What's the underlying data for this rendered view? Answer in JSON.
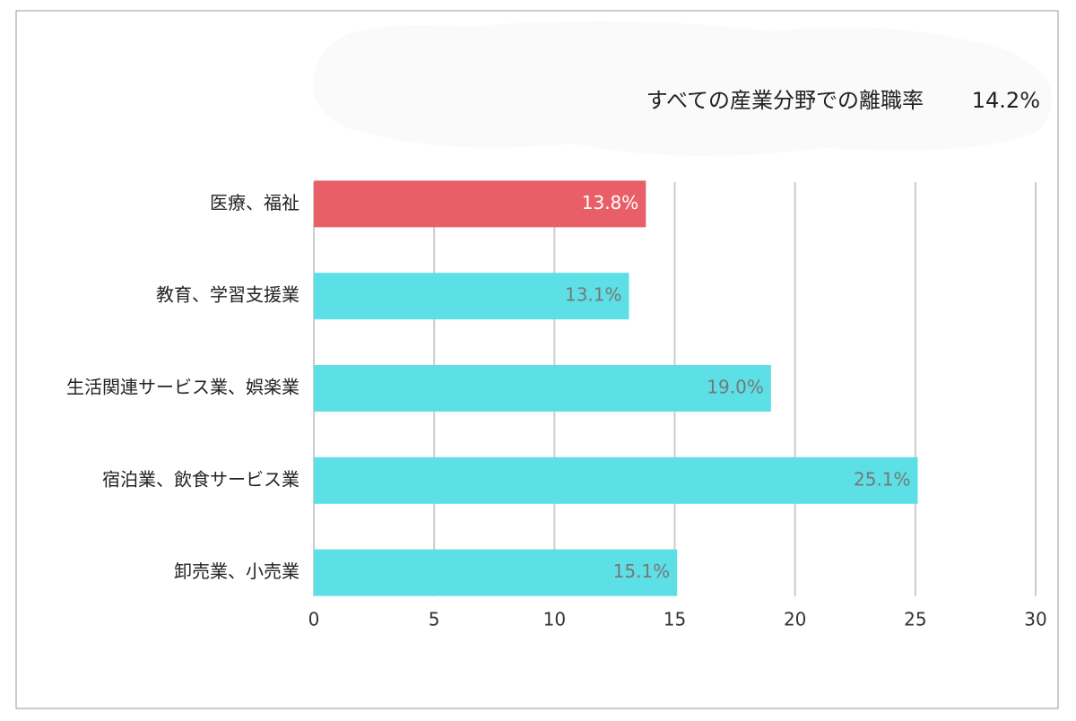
{
  "chart_data": {
    "type": "bar",
    "orientation": "horizontal",
    "annotation": {
      "label": "すべての産業分野での離職率",
      "value": "14.2%"
    },
    "categories": [
      "医療、福祉",
      "教育、学習支援業",
      "生活関連サービス業、娯楽業",
      "宿泊業、飲食サービス業",
      "卸売業、小売業"
    ],
    "values": [
      13.8,
      13.1,
      19.0,
      25.1,
      15.1
    ],
    "value_labels": [
      "13.8%",
      "13.1%",
      "19.0%",
      "25.1%",
      "15.1%"
    ],
    "colors": [
      "#e95f67",
      "#5ce0e6",
      "#5ce0e6",
      "#5ce0e6",
      "#5ce0e6"
    ],
    "label_colors": [
      "#ffffff",
      "#777777",
      "#777777",
      "#777777",
      "#777777"
    ],
    "xlim": [
      0,
      30
    ],
    "xticks": [
      0,
      5,
      10,
      15,
      20,
      25,
      30
    ],
    "grid": true
  }
}
